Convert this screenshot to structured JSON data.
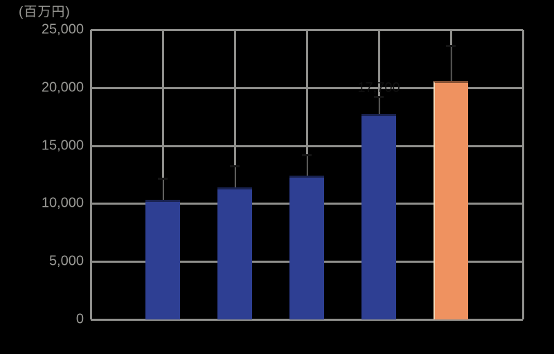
{
  "axis_title": "(百万円)",
  "colors": {
    "background": "#000000",
    "grid": "#8f8f8c",
    "tick_label": "#9a9a96",
    "bar_normal": "#2e3f93",
    "bar_highlight": "#ef9260",
    "error_bar": "#141414",
    "annotation_text": "#0f0f0f"
  },
  "chart_data": {
    "type": "bar",
    "title": "(百万円)",
    "ylabel": "(百万円)",
    "xlabel": "",
    "ylim": [
      0,
      25000
    ],
    "ytick_labels": [
      "25,000",
      "20,000",
      "15,000",
      "10,000",
      "5,000",
      "0"
    ],
    "ytick_values": [
      25000,
      20000,
      15000,
      10000,
      5000,
      0
    ],
    "grid": "full (horizontal and vertical gridlines)",
    "legend_position": "none",
    "series": [
      {
        "name": "bars",
        "values": [
          10300,
          11400,
          12400,
          17700,
          20600
        ],
        "errors_upper": [
          1900,
          1850,
          1800,
          1500,
          3000
        ],
        "colors": [
          "#2e3f93",
          "#2e3f93",
          "#2e3f93",
          "#2e3f93",
          "#ef9260"
        ]
      }
    ],
    "highlight_index": 4,
    "annotation": {
      "bar_index": 3,
      "text": "17,700"
    }
  }
}
